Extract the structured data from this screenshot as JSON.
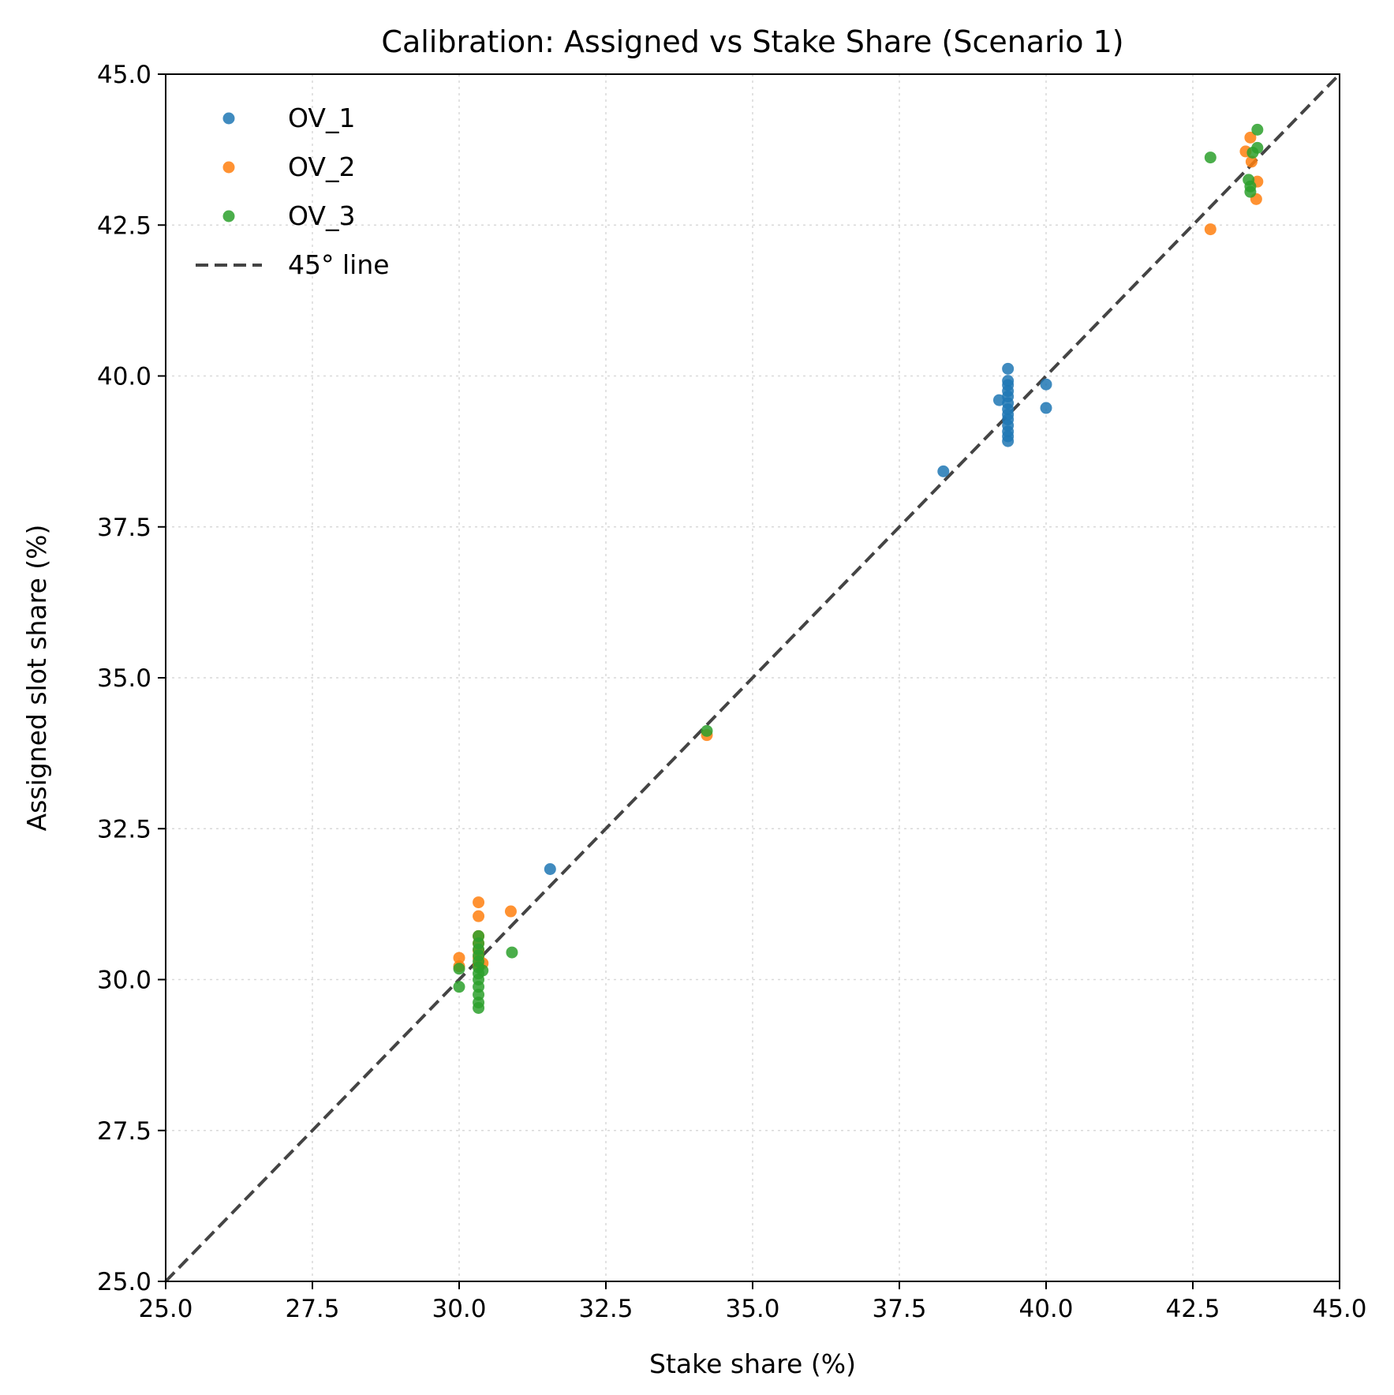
{
  "chart_data": {
    "type": "scatter",
    "title": "Calibration: Assigned vs Stake Share (Scenario 1)",
    "xlabel": "Stake share (%)",
    "ylabel": "Assigned slot share (%)",
    "xlim": [
      25.0,
      45.0
    ],
    "ylim": [
      25.0,
      45.0
    ],
    "xticks": [
      "25.0",
      "27.5",
      "30.0",
      "32.5",
      "35.0",
      "37.5",
      "40.0",
      "42.5",
      "45.0"
    ],
    "yticks": [
      "25.0",
      "27.5",
      "30.0",
      "32.5",
      "35.0",
      "37.5",
      "40.0",
      "42.5",
      "45.0"
    ],
    "grid": true,
    "legend_position": "top-left",
    "series": [
      {
        "name": "OV_1",
        "color": "#1f77b4",
        "points": [
          [
            31.55,
            31.83
          ],
          [
            38.25,
            38.42
          ],
          [
            39.2,
            39.6
          ],
          [
            39.35,
            40.12
          ],
          [
            39.35,
            39.92
          ],
          [
            39.35,
            39.85
          ],
          [
            39.35,
            39.75
          ],
          [
            39.35,
            39.66
          ],
          [
            39.35,
            39.55
          ],
          [
            39.35,
            39.45
          ],
          [
            39.35,
            39.36
          ],
          [
            39.35,
            39.28
          ],
          [
            39.35,
            39.18
          ],
          [
            39.35,
            39.08
          ],
          [
            39.35,
            39.0
          ],
          [
            39.35,
            38.92
          ],
          [
            40.0,
            39.86
          ],
          [
            40.0,
            39.47
          ]
        ]
      },
      {
        "name": "OV_2",
        "color": "#ff7f0e",
        "points": [
          [
            30.0,
            30.36
          ],
          [
            30.0,
            30.22
          ],
          [
            30.33,
            31.28
          ],
          [
            30.33,
            31.05
          ],
          [
            30.33,
            30.72
          ],
          [
            30.33,
            30.6
          ],
          [
            30.33,
            30.48
          ],
          [
            30.33,
            30.36
          ],
          [
            30.33,
            30.24
          ],
          [
            30.4,
            30.27
          ],
          [
            30.88,
            31.13
          ],
          [
            34.22,
            34.05
          ],
          [
            42.8,
            42.43
          ],
          [
            43.4,
            43.72
          ],
          [
            43.48,
            43.95
          ],
          [
            43.5,
            43.55
          ],
          [
            43.6,
            43.22
          ],
          [
            43.58,
            42.93
          ]
        ]
      },
      {
        "name": "OV_3",
        "color": "#2ca02c",
        "points": [
          [
            30.0,
            30.18
          ],
          [
            30.0,
            29.88
          ],
          [
            30.33,
            30.72
          ],
          [
            30.33,
            30.6
          ],
          [
            30.33,
            30.5
          ],
          [
            30.33,
            30.4
          ],
          [
            30.33,
            30.3
          ],
          [
            30.33,
            30.2
          ],
          [
            30.33,
            30.1
          ],
          [
            30.33,
            30.0
          ],
          [
            30.33,
            29.88
          ],
          [
            30.33,
            29.75
          ],
          [
            30.33,
            29.62
          ],
          [
            30.33,
            29.53
          ],
          [
            30.4,
            30.15
          ],
          [
            30.9,
            30.45
          ],
          [
            34.22,
            34.12
          ],
          [
            42.8,
            43.62
          ],
          [
            43.45,
            43.25
          ],
          [
            43.48,
            43.14
          ],
          [
            43.48,
            43.05
          ],
          [
            43.52,
            43.7
          ],
          [
            43.6,
            43.78
          ],
          [
            43.6,
            44.08
          ]
        ]
      }
    ],
    "reference_line": {
      "name": "45° line",
      "color": "#444444",
      "style": "dashed",
      "from": [
        25.0,
        25.0
      ],
      "to": [
        45.0,
        45.0
      ]
    }
  }
}
